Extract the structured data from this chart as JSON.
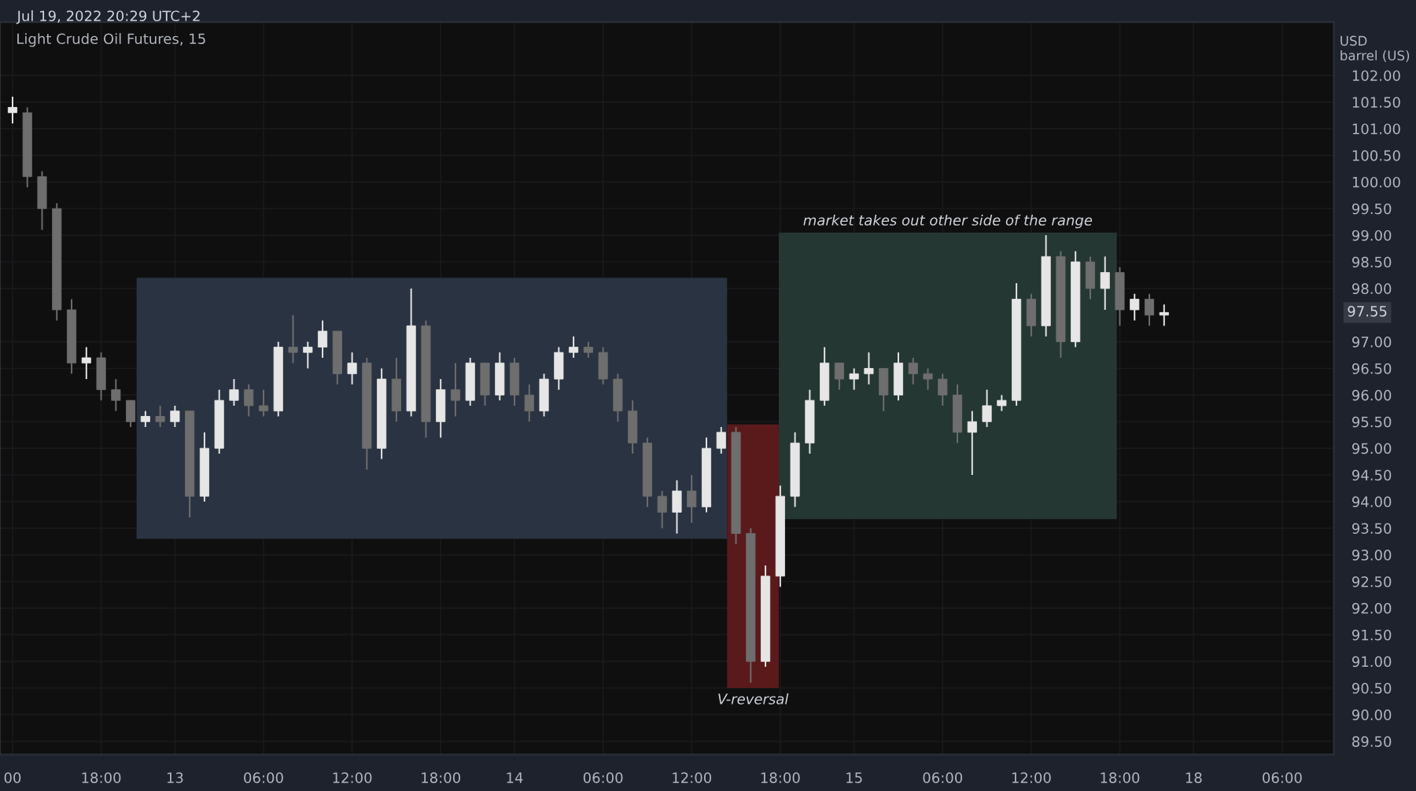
{
  "chart_data": {
    "type": "candlestick",
    "title": "Light Crude Oil Futures, 15",
    "subtitle": "Jul 19, 2022 20:29 UTC+2",
    "ylabel": "USD\nbarrel (US)",
    "categories": [
      "00",
      null,
      null,
      null,
      null,
      null,
      "18:00",
      null,
      null,
      null,
      null,
      "13",
      null,
      null,
      null,
      null,
      null,
      "06:00",
      null,
      null,
      null,
      null,
      null,
      "12:00",
      null,
      null,
      null,
      null,
      null,
      "18:00",
      null,
      null,
      null,
      null,
      "14",
      null,
      null,
      null,
      null,
      null,
      "06:00",
      null,
      null,
      null,
      null,
      null,
      "12:00",
      null,
      null,
      null,
      null,
      null,
      "18:00",
      null,
      null,
      null,
      null,
      "15",
      null,
      null,
      null,
      null,
      null,
      "06:00",
      null,
      null,
      null,
      null,
      null,
      "12:00",
      null,
      null,
      null,
      null,
      null,
      "18:00",
      null,
      null,
      null,
      null,
      "18",
      null,
      null,
      null,
      null,
      null,
      "06:00"
    ],
    "ohlc": [
      [
        101.3,
        101.6,
        101.1,
        101.4
      ],
      [
        101.3,
        101.4,
        99.9,
        100.1
      ],
      [
        100.1,
        100.2,
        99.1,
        99.5
      ],
      [
        99.5,
        99.6,
        97.4,
        97.6
      ],
      [
        97.6,
        97.8,
        96.4,
        96.6
      ],
      [
        96.6,
        96.9,
        96.3,
        96.7
      ],
      [
        96.7,
        96.8,
        95.9,
        96.1
      ],
      [
        96.1,
        96.3,
        95.7,
        95.9
      ],
      [
        95.9,
        95.9,
        95.4,
        95.5
      ],
      [
        95.5,
        95.7,
        95.4,
        95.6
      ],
      [
        95.6,
        95.8,
        95.4,
        95.5
      ],
      [
        95.5,
        95.8,
        95.4,
        95.7
      ],
      [
        95.7,
        95.7,
        93.7,
        94.1
      ],
      [
        94.1,
        95.3,
        94.0,
        95.0
      ],
      [
        95.0,
        96.1,
        94.9,
        95.9
      ],
      [
        95.9,
        96.3,
        95.8,
        96.1
      ],
      [
        96.1,
        96.2,
        95.6,
        95.8
      ],
      [
        95.8,
        96.1,
        95.6,
        95.7
      ],
      [
        95.7,
        97.0,
        95.6,
        96.9
      ],
      [
        96.9,
        97.5,
        96.6,
        96.8
      ],
      [
        96.8,
        97.0,
        96.5,
        96.9
      ],
      [
        96.9,
        97.4,
        96.7,
        97.2
      ],
      [
        97.2,
        97.2,
        96.2,
        96.4
      ],
      [
        96.4,
        96.8,
        96.2,
        96.6
      ],
      [
        96.6,
        96.7,
        94.6,
        95.0
      ],
      [
        95.0,
        96.5,
        94.8,
        96.3
      ],
      [
        96.3,
        96.7,
        95.5,
        95.7
      ],
      [
        95.7,
        98.0,
        95.6,
        97.3
      ],
      [
        97.3,
        97.4,
        95.2,
        95.5
      ],
      [
        95.5,
        96.3,
        95.2,
        96.1
      ],
      [
        96.1,
        96.6,
        95.6,
        95.9
      ],
      [
        95.9,
        96.7,
        95.8,
        96.6
      ],
      [
        96.6,
        96.6,
        95.8,
        96.0
      ],
      [
        96.0,
        96.8,
        95.9,
        96.6
      ],
      [
        96.6,
        96.7,
        95.8,
        96.0
      ],
      [
        96.0,
        96.2,
        95.5,
        95.7
      ],
      [
        95.7,
        96.4,
        95.6,
        96.3
      ],
      [
        96.3,
        96.9,
        96.1,
        96.8
      ],
      [
        96.8,
        97.1,
        96.7,
        96.9
      ],
      [
        96.9,
        97.0,
        96.7,
        96.8
      ],
      [
        96.8,
        96.9,
        96.2,
        96.3
      ],
      [
        96.3,
        96.4,
        95.5,
        95.7
      ],
      [
        95.7,
        95.9,
        94.9,
        95.1
      ],
      [
        95.1,
        95.2,
        93.9,
        94.1
      ],
      [
        94.1,
        94.2,
        93.5,
        93.8
      ],
      [
        93.8,
        94.4,
        93.4,
        94.2
      ],
      [
        94.2,
        94.5,
        93.6,
        93.9
      ],
      [
        93.9,
        95.2,
        93.8,
        95.0
      ],
      [
        95.0,
        95.4,
        94.9,
        95.3
      ],
      [
        95.3,
        95.4,
        93.2,
        93.4
      ],
      [
        93.4,
        93.5,
        90.6,
        91.0
      ],
      [
        91.0,
        92.8,
        90.9,
        92.6
      ],
      [
        92.6,
        94.3,
        92.4,
        94.1
      ],
      [
        94.1,
        95.3,
        93.9,
        95.1
      ],
      [
        95.1,
        96.1,
        94.9,
        95.9
      ],
      [
        95.9,
        96.9,
        95.8,
        96.6
      ],
      [
        96.6,
        96.6,
        96.1,
        96.3
      ],
      [
        96.3,
        96.5,
        96.1,
        96.4
      ],
      [
        96.4,
        96.8,
        96.2,
        96.5
      ],
      [
        96.5,
        96.5,
        95.7,
        96.0
      ],
      [
        96.0,
        96.8,
        95.9,
        96.6
      ],
      [
        96.6,
        96.7,
        96.2,
        96.4
      ],
      [
        96.4,
        96.5,
        96.1,
        96.3
      ],
      [
        96.3,
        96.4,
        95.8,
        96.0
      ],
      [
        96.0,
        96.2,
        95.1,
        95.3
      ],
      [
        95.3,
        95.7,
        94.5,
        95.5
      ],
      [
        95.5,
        96.1,
        95.4,
        95.8
      ],
      [
        95.8,
        96.0,
        95.7,
        95.9
      ],
      [
        95.9,
        98.1,
        95.8,
        97.8
      ],
      [
        97.8,
        97.9,
        97.1,
        97.3
      ],
      [
        97.3,
        99.0,
        97.1,
        98.6
      ],
      [
        98.6,
        98.7,
        96.7,
        97.0
      ],
      [
        97.0,
        98.7,
        96.9,
        98.5
      ],
      [
        98.5,
        98.6,
        97.8,
        98.0
      ],
      [
        98.0,
        98.6,
        97.6,
        98.3
      ],
      [
        98.3,
        98.4,
        97.3,
        97.6
      ],
      [
        97.6,
        97.9,
        97.4,
        97.8
      ],
      [
        97.8,
        97.9,
        97.3,
        97.5
      ],
      [
        97.5,
        97.7,
        97.3,
        97.55
      ],
      null,
      null,
      null,
      null,
      null,
      null,
      null,
      null
    ],
    "ylim": [
      89.25,
      103.0
    ],
    "yticks": [
      {
        "value": 89.5,
        "label": "89.50"
      },
      {
        "value": 90,
        "label": "90.00"
      },
      {
        "value": 90.5,
        "label": "90.50"
      },
      {
        "value": 91,
        "label": "91.00"
      },
      {
        "value": 91.5,
        "label": "91.50"
      },
      {
        "value": 92,
        "label": "92.00"
      },
      {
        "value": 92.5,
        "label": "92.50"
      },
      {
        "value": 93,
        "label": "93.00"
      },
      {
        "value": 93.5,
        "label": "93.50"
      },
      {
        "value": 94,
        "label": "94.00"
      },
      {
        "value": 94.5,
        "label": "94.50"
      },
      {
        "value": 95,
        "label": "95.00"
      },
      {
        "value": 95.5,
        "label": "95.50"
      },
      {
        "value": 96,
        "label": "96.00"
      },
      {
        "value": 96.5,
        "label": "96.50"
      },
      {
        "value": 97,
        "label": "97.00"
      },
      {
        "value": 98,
        "label": "98.00"
      },
      {
        "value": 98.5,
        "label": "98.50"
      },
      {
        "value": 99,
        "label": "99.00"
      },
      {
        "value": 99.5,
        "label": "99.50"
      },
      {
        "value": 100,
        "label": "100.00"
      },
      {
        "value": 100.5,
        "label": "100.50"
      },
      {
        "value": 101,
        "label": "101.00"
      },
      {
        "value": 101.5,
        "label": "101.50"
      },
      {
        "value": 102,
        "label": "102.00"
      }
    ],
    "bands": [
      {
        "axis": "y",
        "from": 93.3,
        "to": 98.2,
        "color": "#2a3341"
      },
      {
        "axis": "y",
        "from": 90.5,
        "to": 95.45,
        "color": "#5a1a1c",
        "label": "V-reversal"
      },
      {
        "axis": "y",
        "from": 93.67,
        "to": 99.05,
        "color": "#253733",
        "label": "market takes out other side of the range"
      }
    ],
    "annotations": [
      "97.55"
    ],
    "grid": true
  }
}
